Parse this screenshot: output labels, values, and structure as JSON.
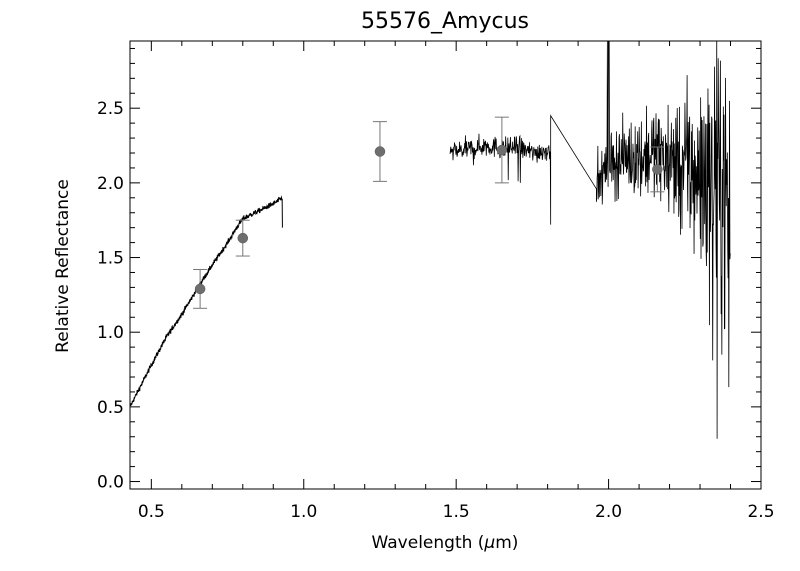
{
  "chart_data": {
    "type": "line",
    "title": "55576_Amycus",
    "xlabel_prefix": "Wavelength (",
    "xlabel_mu": "μ",
    "xlabel_suffix": "m)",
    "ylabel": "Relative Reflectance",
    "xlim": [
      0.43,
      2.5
    ],
    "ylim": [
      -0.05,
      2.95
    ],
    "x_ticks": [
      "0.5",
      "1.0",
      "1.5",
      "2.0",
      "2.5"
    ],
    "x_tick_values": [
      0.5,
      1.0,
      1.5,
      2.0,
      2.5
    ],
    "y_ticks": [
      "0.0",
      "0.5",
      "1.0",
      "1.5",
      "2.0",
      "2.5"
    ],
    "y_tick_values": [
      0.0,
      0.5,
      1.0,
      1.5,
      2.0,
      2.5
    ],
    "grid": false,
    "series": [
      {
        "kind": "visible-spectrum",
        "x": [
          0.43,
          0.45,
          0.5,
          0.55,
          0.6,
          0.65,
          0.7,
          0.75,
          0.78,
          0.8,
          0.85,
          0.9,
          0.93
        ],
        "y": [
          0.5,
          0.58,
          0.78,
          0.97,
          1.12,
          1.29,
          1.45,
          1.6,
          1.7,
          1.76,
          1.81,
          1.86,
          1.9
        ]
      },
      {
        "kind": "nir-spectrum",
        "x": [
          1.48,
          1.55,
          1.6,
          1.65,
          1.7,
          1.75,
          1.8,
          1.81,
          1.96,
          2.0,
          2.05,
          2.1,
          2.15,
          2.2,
          2.25,
          2.3,
          2.35,
          2.4
        ],
        "y": [
          2.2,
          2.23,
          2.25,
          2.23,
          2.24,
          2.2,
          2.22,
          2.45,
          1.98,
          2.12,
          2.17,
          2.18,
          2.2,
          2.15,
          2.1,
          2.05,
          2.0,
          1.9
        ]
      }
    ],
    "photometry": [
      {
        "x": 0.66,
        "y": 1.29,
        "err": 0.13
      },
      {
        "x": 0.8,
        "y": 1.63,
        "err": 0.12
      },
      {
        "x": 1.25,
        "y": 2.21,
        "err": 0.2
      },
      {
        "x": 1.65,
        "y": 2.22,
        "err": 0.22
      },
      {
        "x": 2.16,
        "y": 2.09,
        "err": 0.15
      }
    ]
  }
}
